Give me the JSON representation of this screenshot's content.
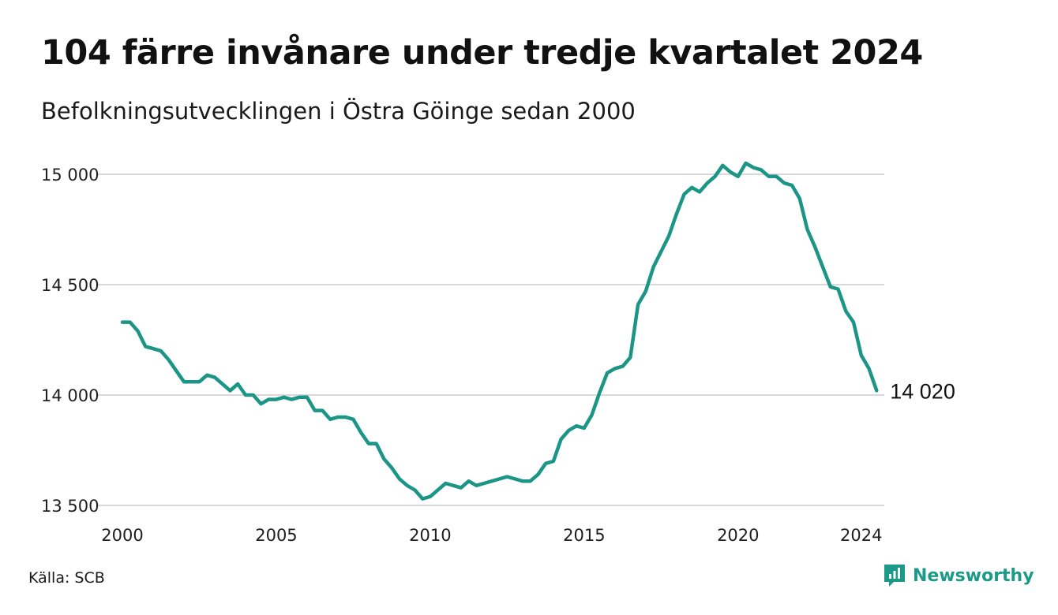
{
  "title": "104 färre invånare under tredje kvartalet 2024",
  "subtitle": "Befolkningsutvecklingen i Östra Göinge sedan 2000",
  "source": "Källa: SCB",
  "brand": {
    "name": "Newsworthy",
    "icon": "newsworthy-logo-icon",
    "color": "#1c9a88"
  },
  "colors": {
    "line": "#1b9585",
    "grid": "#d9d9d9"
  },
  "chart_data": {
    "type": "line",
    "xlim": [
      2000,
      2024.75
    ],
    "ylim": [
      13500,
      15000
    ],
    "y_ticks": [
      {
        "value": 15000,
        "label": "15 000"
      },
      {
        "value": 14500,
        "label": "14 500"
      },
      {
        "value": 14000,
        "label": "14 000"
      },
      {
        "value": 13500,
        "label": "13 500"
      }
    ],
    "x_ticks": [
      {
        "value": 2000,
        "label": "2000"
      },
      {
        "value": 2005,
        "label": "2005"
      },
      {
        "value": 2010,
        "label": "2010"
      },
      {
        "value": 2015,
        "label": "2015"
      },
      {
        "value": 2020,
        "label": "2020"
      },
      {
        "value": 2024,
        "label": "2024"
      }
    ],
    "grid": true,
    "end_label": "14 020",
    "series": [
      {
        "x": [
          2000,
          2000.25,
          2000.5,
          2000.75,
          2001,
          2001.25,
          2001.5,
          2001.75,
          2002,
          2002.25,
          2002.5,
          2002.75,
          2003,
          2003.25,
          2003.5,
          2003.75,
          2004,
          2004.25,
          2004.5,
          2004.75,
          2005,
          2005.25,
          2005.5,
          2005.75,
          2006,
          2006.25,
          2006.5,
          2006.75,
          2007,
          2007.25,
          2007.5,
          2007.75,
          2008,
          2008.25,
          2008.5,
          2008.75,
          2009,
          2009.25,
          2009.5,
          2009.75,
          2010,
          2010.25,
          2010.5,
          2010.75,
          2011,
          2011.25,
          2011.5,
          2011.75,
          2012,
          2012.25,
          2012.5,
          2012.75,
          2013,
          2013.25,
          2013.5,
          2013.75,
          2014,
          2014.25,
          2014.5,
          2014.75,
          2015,
          2015.25,
          2015.5,
          2015.75,
          2016,
          2016.25,
          2016.5,
          2016.75,
          2017,
          2017.25,
          2017.5,
          2017.75,
          2018,
          2018.25,
          2018.5,
          2018.75,
          2019,
          2019.25,
          2019.5,
          2019.75,
          2020,
          2020.25,
          2020.5,
          2020.75,
          2021,
          2021.25,
          2021.5,
          2021.75,
          2022,
          2022.25,
          2022.5,
          2022.75,
          2023,
          2023.25,
          2023.5,
          2023.75,
          2024,
          2024.25,
          2024.5
        ],
        "values": [
          14330,
          14330,
          14290,
          14220,
          14210,
          14200,
          14160,
          14110,
          14060,
          14060,
          14060,
          14090,
          14080,
          14050,
          14020,
          14050,
          14000,
          14000,
          13960,
          13980,
          13980,
          13990,
          13980,
          13990,
          13990,
          13930,
          13930,
          13890,
          13900,
          13900,
          13890,
          13830,
          13780,
          13780,
          13710,
          13670,
          13620,
          13590,
          13570,
          13530,
          13540,
          13570,
          13600,
          13590,
          13580,
          13610,
          13590,
          13600,
          13610,
          13620,
          13630,
          13620,
          13610,
          13610,
          13640,
          13690,
          13700,
          13800,
          13840,
          13860,
          13850,
          13910,
          14010,
          14100,
          14120,
          14130,
          14170,
          14410,
          14470,
          14580,
          14650,
          14720,
          14820,
          14910,
          14940,
          14920,
          14960,
          14990,
          15040,
          15010,
          14990,
          15050,
          15030,
          15020,
          14990,
          14990,
          14960,
          14950,
          14890,
          14750,
          14670,
          14580,
          14490,
          14480,
          14380,
          14330,
          14180,
          14120,
          14020
        ]
      }
    ]
  }
}
